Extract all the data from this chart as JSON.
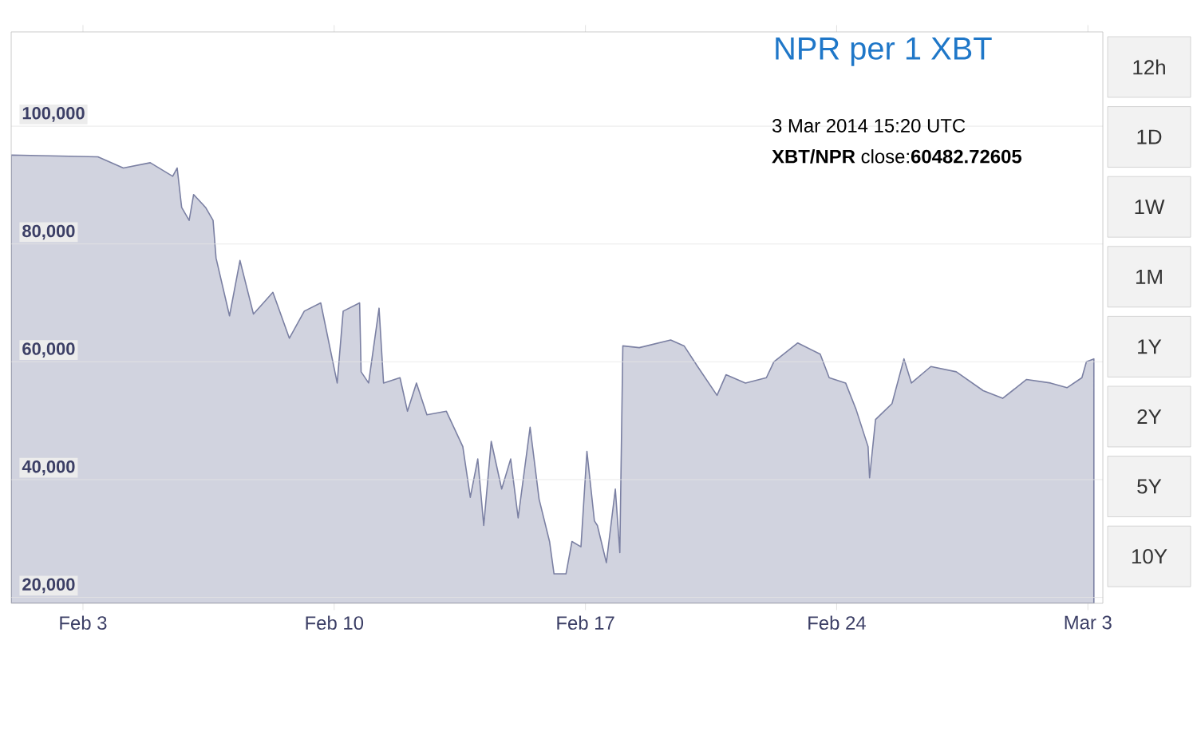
{
  "chart_data": {
    "type": "area",
    "title": "NPR per 1 XBT",
    "annotations": [
      "3 Mar 2014 15:20 UTC",
      "**XBT/NPR** close:**60482.72605**",
      "12h",
      "1D",
      "1W",
      "1M",
      "1Y",
      "2Y",
      "5Y",
      "10Y"
    ],
    "series": [
      {
        "color": "#7b80a3",
        "x": [
          "2014-02-01T00:00",
          "2014-02-03T10:00",
          "2014-02-04T03:00",
          "2014-02-04T21:00",
          "2014-02-05T12:00",
          "2014-02-05T15:00",
          "2014-02-05T18:00",
          "2014-02-05T23:00",
          "2014-02-06T02:00",
          "2014-02-06T10:00",
          "2014-02-06T15:00",
          "2014-02-06T17:00",
          "2014-02-07T02:00",
          "2014-02-07T09:00",
          "2014-02-07T18:00",
          "2014-02-08T07:00",
          "2014-02-08T18:00",
          "2014-02-09T04:00",
          "2014-02-09T15:00",
          "2014-02-10T02:00",
          "2014-02-10T06:00",
          "2014-02-10T17:00",
          "2014-02-10T18:00",
          "2014-02-10T23:00",
          "2014-02-11T06:00",
          "2014-02-11T09:00",
          "2014-02-11T20:00",
          "2014-02-12T01:00",
          "2014-02-12T07:00",
          "2014-02-12T14:00",
          "2014-02-13T03:00",
          "2014-02-13T14:00",
          "2014-02-13T19:00",
          "2014-02-14T00:00",
          "2014-02-14T04:00",
          "2014-02-14T09:00",
          "2014-02-14T16:00",
          "2014-02-14T22:00",
          "2014-02-15T03:00",
          "2014-02-15T11:00",
          "2014-02-15T17:00",
          "2014-02-16T00:00",
          "2014-02-16T03:00",
          "2014-02-16T11:00",
          "2014-02-16T15:00",
          "2014-02-16T21:00",
          "2014-02-17T01:00",
          "2014-02-17T06:00",
          "2014-02-17T08:00",
          "2014-02-17T14:00",
          "2014-02-17T20:00",
          "2014-02-17T23:00",
          "2014-02-18T01:00",
          "2014-02-18T12:00",
          "2014-02-19T09:00",
          "2014-02-19T18:00",
          "2014-02-20T03:00",
          "2014-02-20T16:00",
          "2014-02-20T22:00",
          "2014-02-21T11:00",
          "2014-02-22T01:00",
          "2014-02-22T06:00",
          "2014-02-22T22:00",
          "2014-02-23T13:00",
          "2014-02-23T19:00",
          "2014-02-24T06:00",
          "2014-02-24T13:00",
          "2014-02-24T21:00",
          "2014-02-24T22:00",
          "2014-02-25T02:00",
          "2014-02-25T13:00",
          "2014-02-25T21:00",
          "2014-02-26T02:00",
          "2014-02-26T15:00",
          "2014-02-27T08:00",
          "2014-02-28T02:00",
          "2014-02-28T15:00",
          "2014-03-01T07:00",
          "2014-03-01T23:00",
          "2014-03-02T10:00",
          "2014-03-02T20:00",
          "2014-03-02T23:00",
          "2014-03-03T04:00"
        ],
        "values": [
          95100,
          94800,
          92900,
          93800,
          91500,
          92900,
          86200,
          84000,
          88400,
          86200,
          84000,
          77600,
          67800,
          77200,
          68100,
          71800,
          64000,
          68600,
          70000,
          56400,
          68600,
          70000,
          58300,
          56400,
          69100,
          56400,
          57300,
          51600,
          56400,
          51000,
          51600,
          45600,
          37000,
          43500,
          32200,
          46500,
          38400,
          43500,
          33500,
          48900,
          36700,
          29500,
          24000,
          24000,
          29500,
          28600,
          44800,
          33000,
          32200,
          25900,
          38400,
          27600,
          62700,
          62400,
          63700,
          62700,
          59200,
          54300,
          57800,
          56400,
          57300,
          60000,
          63200,
          61300,
          57300,
          56400,
          51900,
          45600,
          40300,
          50200,
          52900,
          60500,
          56400,
          59200,
          58300,
          55100,
          53800,
          57000,
          56400,
          55600,
          57300,
          60000,
          60500
        ]
      }
    ],
    "xlim": [
      "2014-02-01",
      "2014-03-03T10:00"
    ],
    "xticks": [
      {
        "value": "2014-02-03",
        "label": "Feb 3"
      },
      {
        "value": "2014-02-10",
        "label": "Feb 10"
      },
      {
        "value": "2014-02-17",
        "label": "Feb 17"
      },
      {
        "value": "2014-02-24",
        "label": "Feb 24"
      },
      {
        "value": "2014-03-03",
        "label": "Mar 3"
      }
    ],
    "ylim": [
      19000,
      116000
    ],
    "yticks": [
      {
        "value": 20000,
        "label": "20,000"
      },
      {
        "value": 40000,
        "label": "40,000"
      },
      {
        "value": 60000,
        "label": "60,000"
      },
      {
        "value": 80000,
        "label": "80,000"
      },
      {
        "value": 100000,
        "label": "100,000"
      }
    ],
    "grid": "y",
    "marker": "none",
    "line_style": "solid"
  }
}
